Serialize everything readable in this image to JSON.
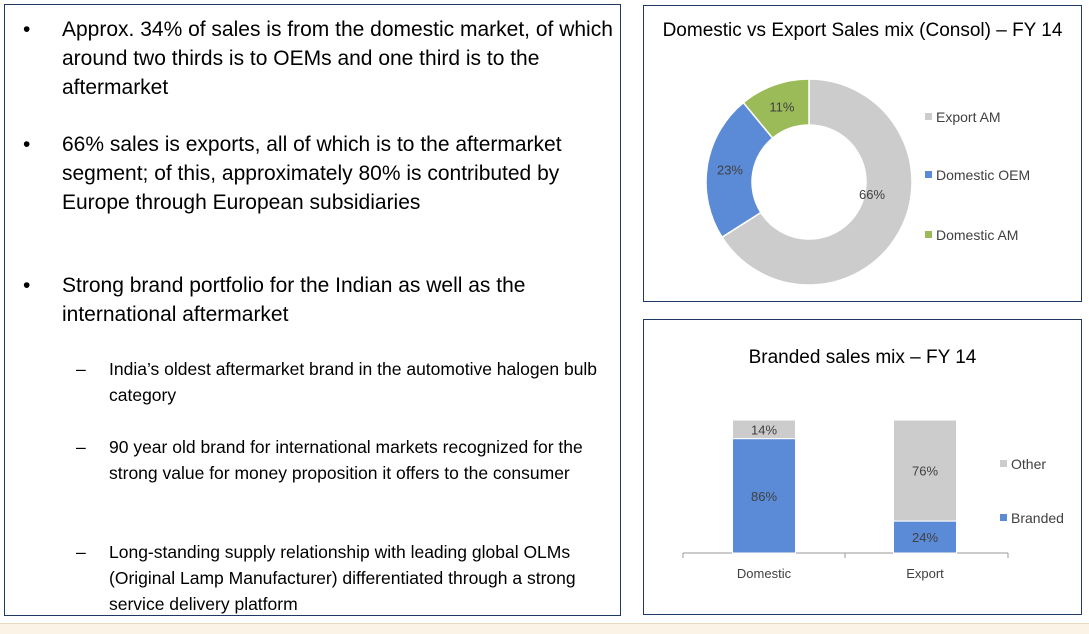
{
  "left": {
    "bullets": [
      {
        "mark": "•",
        "text": "Approx. 34% of sales is from the domestic market, of which around two thirds is to OEMs and one third is to the aftermarket"
      },
      {
        "mark": "•",
        "text": "66% sales is exports, all of which is to the aftermarket segment; of this, approximately 80% is contributed by Europe through European subsidiaries"
      },
      {
        "mark": "•",
        "text": "Strong brand portfolio for the Indian as well as the international aftermarket"
      }
    ],
    "sub_bullets": [
      {
        "mark": "–",
        "text": "India’s oldest aftermarket brand in the automotive halogen bulb category"
      },
      {
        "mark": "–",
        "text": "90 year old brand for international markets recognized for the strong value for money proposition it offers to the consumer"
      },
      {
        "mark": "–",
        "text": "Long-standing supply relationship with leading global OLMs (Original Lamp Manufacturer) differentiated through a strong service delivery platform"
      }
    ]
  },
  "chart_data": [
    {
      "type": "pie",
      "donut": true,
      "title": "Domestic vs Export Sales mix (Consol) – FY 14",
      "categories": [
        "Export AM",
        "Domestic OEM",
        "Domestic AM"
      ],
      "values": [
        66,
        23,
        11
      ],
      "data_labels": [
        "66%",
        "23%",
        "11%"
      ],
      "colors": [
        "#cccccc",
        "#5b8bd6",
        "#9bbb59"
      ],
      "legend": "right"
    },
    {
      "type": "bar",
      "stacked": true,
      "percent": true,
      "title": "Branded sales mix – FY 14",
      "categories": [
        "Domestic",
        "Export"
      ],
      "series": [
        {
          "name": "Branded",
          "values": [
            86,
            24
          ],
          "labels": [
            "86%",
            "24%"
          ],
          "color": "#5b8bd6"
        },
        {
          "name": "Other",
          "values": [
            14,
            76
          ],
          "labels": [
            "14%",
            "76%"
          ],
          "color": "#cccccc"
        }
      ],
      "ylim": [
        0,
        100
      ],
      "legend": "right",
      "grid": false
    }
  ]
}
